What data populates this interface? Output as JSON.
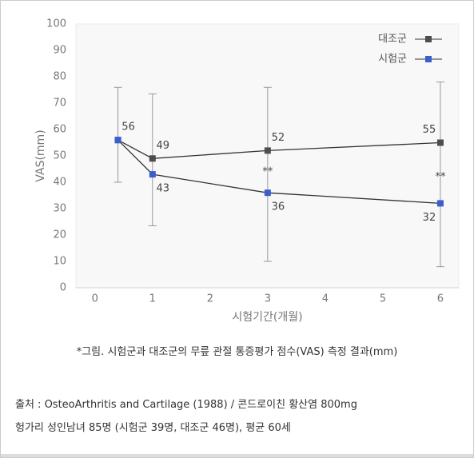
{
  "chart_data": {
    "type": "line",
    "x": [
      0.4,
      1,
      3,
      6
    ],
    "series": [
      {
        "name": "대조군",
        "color": "#4d4d4d",
        "values": [
          56,
          49,
          52,
          55
        ]
      },
      {
        "name": "시험군",
        "color": "#3a5fcd",
        "values": [
          56,
          43,
          36,
          32
        ],
        "value_labels": [
          null,
          "43",
          "36",
          "32"
        ]
      }
    ],
    "error_bars": {
      "low": [
        40,
        23.5,
        10,
        8
      ],
      "high": [
        76,
        73.5,
        76,
        78
      ]
    },
    "annotations": [
      {
        "text": "**",
        "x": 3,
        "y": 44
      },
      {
        "text": "**",
        "x": 6,
        "y": 42
      }
    ],
    "xlabel": "시험기간(개월)",
    "ylabel": "VAS(mm)",
    "xlim": [
      -0.33,
      6.32
    ],
    "xticks": [
      0,
      1,
      2,
      3,
      4,
      5,
      6
    ],
    "ylim": [
      0,
      100
    ],
    "yticks": [
      0,
      10,
      20,
      30,
      40,
      50,
      60,
      70,
      80,
      90,
      100
    ],
    "legend": "top-right"
  },
  "caption": "*그림. 시험군과 대조군의 무릎 관절 통증평가 점수(VAS) 측정 결과(mm)",
  "source": [
    "출처 : OsteoArthritis and Cartilage (1988) / 콘드로이친 황산염 800mg",
    "헝가리 성인남녀 85명 (시험군 39명, 대조군 46명), 평균 60세"
  ]
}
